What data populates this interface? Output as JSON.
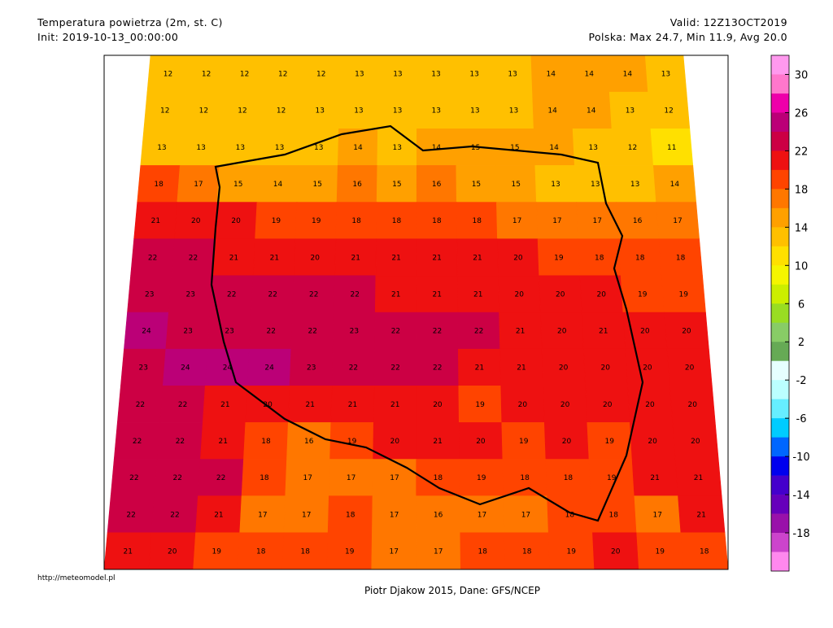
{
  "header": {
    "title": "Temperatura powietrza (2m, st. C)",
    "init": "Init: 2019-10-13_00:00:00",
    "valid": "Valid: 12Z13OCT2019",
    "stats": "Polska: Max 24.7, Min 11.9, Avg 20.0"
  },
  "footer": {
    "url": "http://meteomodel.pl",
    "credit": "Piotr Djakow 2015, Dane: GFS/NCEP"
  },
  "colorbar": {
    "range": [
      32,
      -22
    ],
    "colors": [
      "#ff99ee",
      "#ff77cc",
      "#ee00aa",
      "#bb0077",
      "#cc0044",
      "#ee1111",
      "#ff4400",
      "#ff7700",
      "#ffa000",
      "#ffc000",
      "#ffe000",
      "#f5f500",
      "#ccee00",
      "#99dd22",
      "#88cc66",
      "#66aa55",
      "#e6ffff",
      "#bbffff",
      "#66eeff",
      "#00ccff",
      "#0066ff",
      "#0000ee",
      "#4400cc",
      "#6600bb",
      "#9911aa",
      "#cc44cc",
      "#ff88ee"
    ],
    "ticks": [
      30,
      26,
      22,
      18,
      14,
      10,
      6,
      2,
      -2,
      -6,
      -10,
      -14,
      -18
    ]
  },
  "map": {
    "values": [
      [
        12,
        12,
        12,
        12,
        12,
        13,
        13,
        13,
        13,
        13,
        14,
        14,
        14,
        13
      ],
      [
        12,
        12,
        12,
        12,
        13,
        13,
        13,
        13,
        13,
        13,
        14,
        14,
        13,
        12
      ],
      [
        13,
        13,
        13,
        13,
        13,
        14,
        13,
        14,
        15,
        15,
        14,
        13,
        12,
        11
      ],
      [
        18,
        17,
        15,
        14,
        15,
        16,
        15,
        16,
        15,
        15,
        13,
        13,
        13,
        14
      ],
      [
        21,
        20,
        20,
        19,
        19,
        18,
        18,
        18,
        18,
        17,
        17,
        17,
        16,
        17
      ],
      [
        22,
        22,
        21,
        21,
        20,
        21,
        21,
        21,
        21,
        20,
        19,
        18,
        18,
        18
      ],
      [
        23,
        23,
        22,
        22,
        22,
        22,
        21,
        21,
        21,
        20,
        20,
        20,
        19,
        19
      ],
      [
        24,
        23,
        23,
        22,
        22,
        23,
        22,
        22,
        22,
        21,
        20,
        21,
        20,
        20
      ],
      [
        23,
        24,
        24,
        24,
        23,
        22,
        22,
        22,
        21,
        21,
        20,
        20,
        20,
        20
      ],
      [
        22,
        22,
        21,
        20,
        21,
        21,
        21,
        20,
        19,
        20,
        20,
        20,
        20,
        20
      ],
      [
        22,
        22,
        21,
        18,
        16,
        19,
        20,
        21,
        20,
        19,
        20,
        19,
        20,
        20
      ],
      [
        22,
        22,
        22,
        18,
        17,
        17,
        17,
        18,
        19,
        18,
        18,
        19,
        21,
        21
      ],
      [
        22,
        22,
        21,
        17,
        17,
        18,
        17,
        16,
        17,
        17,
        18,
        18,
        17,
        21
      ],
      [
        21,
        20,
        19,
        18,
        18,
        19,
        17,
        17,
        18,
        18,
        19,
        20,
        19,
        18
      ]
    ]
  }
}
